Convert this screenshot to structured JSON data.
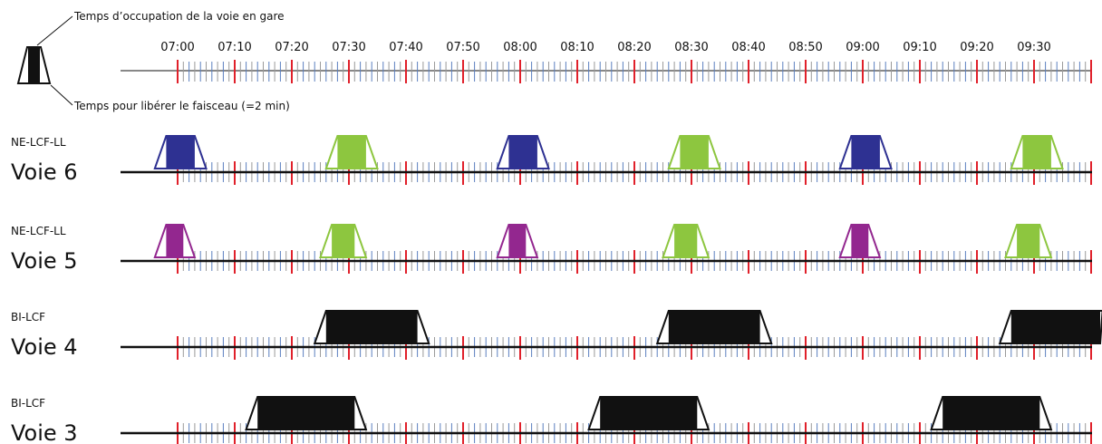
{
  "legend": {
    "occupation_label": "Temps d’occupation de la voie en gare",
    "release_label": "Temps pour libérer le faisceau (=2 min)",
    "release_minutes": 2
  },
  "timeline": {
    "start": "07:00",
    "end": "09:40",
    "labels": [
      "07:00",
      "07:10",
      "07:20",
      "07:30",
      "07:40",
      "07:50",
      "08:00",
      "08:10",
      "08:20",
      "08:30",
      "08:40",
      "08:50",
      "09:00",
      "09:10",
      "09:20",
      "09:30"
    ],
    "colors": {
      "major_tick": "#e0202a",
      "minor_tick": "#5b7fbf",
      "minor_tick_alt": "#9a9a9a",
      "axis": "#111111"
    }
  },
  "tracks": [
    {
      "service": "NE-LCF-LL",
      "name": "Voie 6",
      "occupations": [
        {
          "start": "06:58",
          "end": "07:03",
          "color": "#2e3192"
        },
        {
          "start": "07:28",
          "end": "07:33",
          "color": "#8dc63f"
        },
        {
          "start": "07:58",
          "end": "08:03",
          "color": "#2e3192"
        },
        {
          "start": "08:28",
          "end": "08:33",
          "color": "#8dc63f"
        },
        {
          "start": "08:58",
          "end": "09:03",
          "color": "#2e3192"
        },
        {
          "start": "09:28",
          "end": "09:33",
          "color": "#8dc63f"
        }
      ]
    },
    {
      "service": "NE-LCF-LL",
      "name": "Voie 5",
      "occupations": [
        {
          "start": "06:58",
          "end": "07:01",
          "color": "#93278f"
        },
        {
          "start": "07:27",
          "end": "07:31",
          "color": "#8dc63f"
        },
        {
          "start": "07:58",
          "end": "08:01",
          "color": "#93278f"
        },
        {
          "start": "08:27",
          "end": "08:31",
          "color": "#8dc63f"
        },
        {
          "start": "08:58",
          "end": "09:01",
          "color": "#93278f"
        },
        {
          "start": "09:27",
          "end": "09:31",
          "color": "#8dc63f"
        }
      ]
    },
    {
      "service": "BI-LCF",
      "name": "Voie 4",
      "occupations": [
        {
          "start": "07:26",
          "end": "07:42",
          "color": "#111111"
        },
        {
          "start": "08:26",
          "end": "08:42",
          "color": "#111111"
        },
        {
          "start": "09:26",
          "end": "09:42",
          "color": "#111111"
        }
      ]
    },
    {
      "service": "BI-LCF",
      "name": "Voie 3",
      "occupations": [
        {
          "start": "07:14",
          "end": "07:31",
          "color": "#111111"
        },
        {
          "start": "08:14",
          "end": "08:31",
          "color": "#111111"
        },
        {
          "start": "09:14",
          "end": "09:31",
          "color": "#111111"
        }
      ]
    }
  ]
}
